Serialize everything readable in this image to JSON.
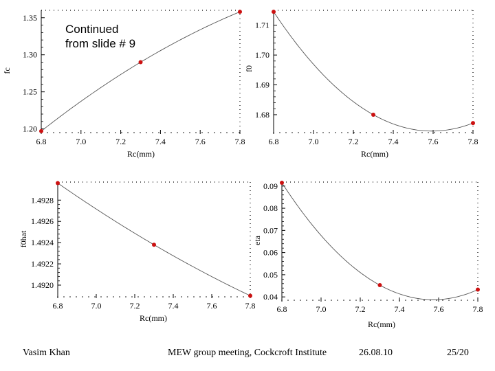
{
  "note": {
    "line1": "Continued",
    "line2": "from slide # 9"
  },
  "footer": {
    "author": "Vasim Khan",
    "meeting": "MEW group meeting, Cockcroft Institute",
    "date": "26.08.10",
    "page": "25/20"
  },
  "colors": {
    "marker": "#cc1111",
    "curve": "#555555",
    "axis": "#000000"
  },
  "chart_data": [
    {
      "type": "scatter",
      "title": "",
      "xlabel": "Rc(mm)",
      "ylabel": "fc",
      "xlim": [
        6.8,
        7.8
      ],
      "ylim": [
        1.195,
        1.36
      ],
      "xticks": [
        6.8,
        7.0,
        7.2,
        7.4,
        7.6,
        7.8
      ],
      "xtick_labels": [
        "6.8",
        "7.0",
        "7.2",
        "7.4",
        "7.6",
        "7.8"
      ],
      "yticks": [
        1.2,
        1.25,
        1.3,
        1.35
      ],
      "ytick_labels": [
        "1.20",
        "1.25",
        "1.30",
        "1.35"
      ],
      "points": {
        "x": [
          6.8,
          7.3,
          7.8
        ],
        "y": [
          1.197,
          1.29,
          1.358
        ]
      },
      "fit": "quadratic"
    },
    {
      "type": "scatter",
      "title": "",
      "xlabel": "Rc(mm)",
      "ylabel": "f0",
      "xlim": [
        6.8,
        7.8
      ],
      "ylim": [
        1.674,
        1.715
      ],
      "xticks": [
        6.8,
        7.0,
        7.2,
        7.4,
        7.6,
        7.8
      ],
      "xtick_labels": [
        "6.8",
        "7.0",
        "7.2",
        "7.4",
        "7.6",
        "7.8"
      ],
      "yticks": [
        1.68,
        1.69,
        1.7,
        1.71
      ],
      "ytick_labels": [
        "1.68",
        "1.69",
        "1.70",
        "1.71"
      ],
      "points": {
        "x": [
          6.8,
          7.3,
          7.8
        ],
        "y": [
          1.7145,
          1.68,
          1.6772
        ]
      },
      "fit": "quadratic"
    },
    {
      "type": "scatter",
      "title": "",
      "xlabel": "Rc(mm)",
      "ylabel": "f0hat",
      "xlim": [
        6.8,
        7.8
      ],
      "ylim": [
        1.49189,
        1.49297
      ],
      "xticks": [
        6.8,
        7.0,
        7.2,
        7.4,
        7.6,
        7.8
      ],
      "xtick_labels": [
        "6.8",
        "7.0",
        "7.2",
        "7.4",
        "7.6",
        "7.8"
      ],
      "yticks": [
        1.492,
        1.4922,
        1.4924,
        1.4926,
        1.4928
      ],
      "ytick_labels": [
        "1.4920",
        "1.4922",
        "1.4924",
        "1.4926",
        "1.4928"
      ],
      "points": {
        "x": [
          6.8,
          7.3,
          7.8
        ],
        "y": [
          1.49296,
          1.49238,
          1.4919
        ]
      },
      "fit": "quadratic"
    },
    {
      "type": "scatter",
      "title": "",
      "xlabel": "Rc(mm)",
      "ylabel": "eta",
      "xlim": [
        6.8,
        7.8
      ],
      "ylim": [
        0.0385,
        0.0918
      ],
      "xticks": [
        6.8,
        7.0,
        7.2,
        7.4,
        7.6,
        7.8
      ],
      "xtick_labels": [
        "6.8",
        "7.0",
        "7.2",
        "7.4",
        "7.6",
        "7.8"
      ],
      "yticks": [
        0.04,
        0.05,
        0.06,
        0.07,
        0.08,
        0.09
      ],
      "ytick_labels": [
        "0.04",
        "0.05",
        "0.06",
        "0.07",
        "0.08",
        "0.09"
      ],
      "points": {
        "x": [
          6.8,
          7.3,
          7.8
        ],
        "y": [
          0.0915,
          0.0453,
          0.0433
        ]
      },
      "fit": "quadratic"
    }
  ]
}
